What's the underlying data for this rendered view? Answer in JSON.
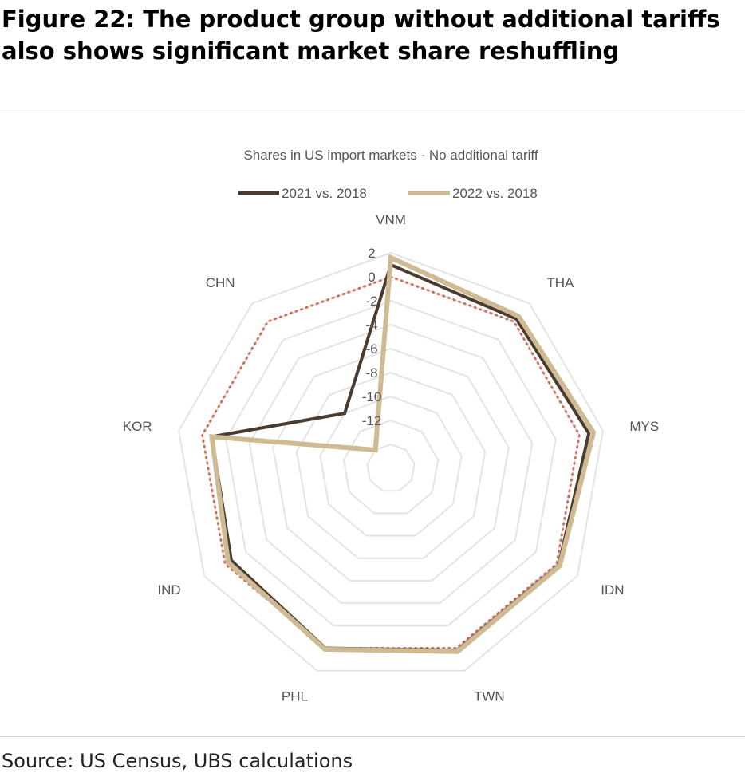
{
  "figure": {
    "title": "Figure 22: The product group without additional tariffs also shows significant market share reshuffling",
    "source": "Source: US Census, UBS calculations"
  },
  "chart_data": {
    "type": "radar",
    "title": "Shares in US import markets - No additional tariff",
    "categories": [
      "VNM",
      "THA",
      "MYS",
      "IDN",
      "TWN",
      "PHL",
      "IND",
      "KOR",
      "CHN"
    ],
    "rlim": [
      -16,
      2
    ],
    "ticks": [
      2,
      0,
      -2,
      -4,
      -6,
      -8,
      -10,
      -12
    ],
    "grid": true,
    "legend": "top",
    "series": [
      {
        "name": "2021 vs. 2018",
        "color": "#4a3b30",
        "style": "solid",
        "values": [
          1.0,
          0.3,
          0.8,
          0.2,
          0.2,
          0.0,
          -0.6,
          -0.8,
          -10.0
        ]
      },
      {
        "name": "2022 vs. 2018",
        "color": "#cfbb93",
        "style": "solid",
        "values": [
          1.6,
          0.6,
          1.2,
          0.3,
          0.3,
          0.1,
          -0.3,
          -0.8,
          -14.0
        ]
      },
      {
        "name": "",
        "color": "#d0705a",
        "style": "dotted",
        "values": [
          0.0,
          0.0,
          0.0,
          0.0,
          0.0,
          0.0,
          0.0,
          0.0,
          0.0
        ]
      }
    ]
  }
}
